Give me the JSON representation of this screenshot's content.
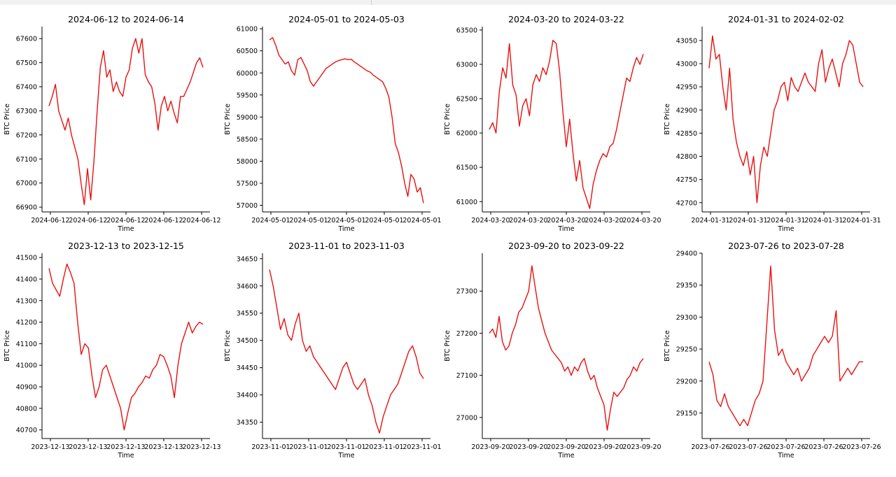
{
  "colors": {
    "line": "#e8110f",
    "axis": "#000000"
  },
  "chart_data": [
    {
      "type": "line",
      "title": "2024-06-12 to 2024-06-14",
      "xlabel": "Time",
      "ylabel": "BTC Price",
      "x_tick_labels": [
        "2024-06-12",
        "2024-06-12",
        "2024-06-12",
        "2024-06-12",
        "2024-06-12"
      ],
      "y_ticks": [
        66900,
        67000,
        67100,
        67200,
        67300,
        67400,
        67500,
        67600
      ],
      "ylim": [
        66880,
        67650
      ],
      "series": [
        {
          "values": [
            67320,
            67360,
            67410,
            67300,
            67260,
            67220,
            67270,
            67200,
            67150,
            67100,
            67000,
            66910,
            67060,
            66930,
            67090,
            67300,
            67480,
            67550,
            67440,
            67470,
            67380,
            67420,
            67380,
            67360,
            67440,
            67470,
            67560,
            67600,
            67540,
            67600,
            67450,
            67420,
            67400,
            67330,
            67220,
            67320,
            67360,
            67300,
            67340,
            67290,
            67250,
            67360,
            67360,
            67390,
            67420,
            67460,
            67500,
            67520,
            67480
          ]
        }
      ],
      "grid": false,
      "legend": "none"
    },
    {
      "type": "line",
      "title": "2024-05-01 to 2024-05-03",
      "xlabel": "Time",
      "ylabel": "BTC Price",
      "x_tick_labels": [
        "2024-05-01",
        "2024-05-01",
        "2024-05-01",
        "2024-05-01",
        "2024-05-01"
      ],
      "y_ticks": [
        57000,
        57500,
        58000,
        58500,
        59000,
        59500,
        60000,
        60500,
        61000
      ],
      "ylim": [
        56850,
        61050
      ],
      "series": [
        {
          "values": [
            60750,
            60800,
            60620,
            60400,
            60300,
            60200,
            60250,
            60050,
            59950,
            60300,
            60350,
            60200,
            60050,
            59800,
            59700,
            59800,
            59900,
            60000,
            60100,
            60150,
            60200,
            60250,
            60280,
            60300,
            60320,
            60300,
            60310,
            60250,
            60200,
            60150,
            60100,
            60050,
            60020,
            59950,
            59900,
            59850,
            59800,
            59650,
            59450,
            59000,
            58400,
            58200,
            57900,
            57500,
            57200,
            57700,
            57600,
            57300,
            57400,
            57050
          ]
        }
      ],
      "grid": false,
      "legend": "none"
    },
    {
      "type": "line",
      "title": "2024-03-20 to 2024-03-22",
      "xlabel": "Time",
      "ylabel": "BTC Price",
      "x_tick_labels": [
        "2024-03-20",
        "2024-03-20",
        "2024-03-20",
        "2024-03-20",
        "2024-03-20"
      ],
      "y_ticks": [
        61000,
        61500,
        62000,
        62500,
        63000,
        63500
      ],
      "ylim": [
        60850,
        63550
      ],
      "series": [
        {
          "values": [
            62050,
            62150,
            62000,
            62600,
            62950,
            62800,
            63300,
            62700,
            62550,
            62100,
            62400,
            62500,
            62250,
            62700,
            62850,
            62750,
            62950,
            62850,
            63050,
            63350,
            63300,
            62900,
            62300,
            61800,
            62200,
            61700,
            61300,
            61600,
            61200,
            61050,
            60900,
            61250,
            61450,
            61600,
            61700,
            61650,
            61800,
            61850,
            62050,
            62300,
            62550,
            62800,
            62750,
            62950,
            63100,
            63000,
            63150
          ]
        }
      ],
      "grid": false,
      "legend": "none"
    },
    {
      "type": "line",
      "title": "2024-01-31 to 2024-02-02",
      "xlabel": "Time",
      "ylabel": "BTC Price",
      "x_tick_labels": [
        "2024-01-31",
        "2024-01-31",
        "2024-01-31",
        "2024-01-31",
        "2024-01-31"
      ],
      "y_ticks": [
        42700,
        42750,
        42800,
        42850,
        42900,
        42950,
        43000,
        43050
      ],
      "ylim": [
        42680,
        43080
      ],
      "series": [
        {
          "values": [
            42990,
            43060,
            43010,
            43020,
            42950,
            42900,
            42990,
            42880,
            42830,
            42800,
            42780,
            42810,
            42760,
            42800,
            42700,
            42780,
            42820,
            42800,
            42850,
            42900,
            42920,
            42950,
            42960,
            42920,
            42970,
            42950,
            42940,
            42960,
            42980,
            42960,
            42950,
            42940,
            43000,
            43030,
            42960,
            42990,
            43010,
            42980,
            42950,
            43000,
            43020,
            43050,
            43040,
            43000,
            42960,
            42950
          ]
        }
      ],
      "grid": false,
      "legend": "none"
    },
    {
      "type": "line",
      "title": "2023-12-13 to 2023-12-15",
      "xlabel": "Time",
      "ylabel": "BTC Price",
      "x_tick_labels": [
        "2023-12-13",
        "2023-12-13",
        "2023-12-13",
        "2023-12-13",
        "2023-12-13"
      ],
      "y_ticks": [
        40700,
        40800,
        40900,
        41000,
        41100,
        41200,
        41300,
        41400,
        41500
      ],
      "ylim": [
        40660,
        41520
      ],
      "series": [
        {
          "values": [
            41450,
            41380,
            41350,
            41320,
            41400,
            41470,
            41430,
            41380,
            41200,
            41050,
            41100,
            41080,
            40950,
            40850,
            40900,
            40980,
            41000,
            40950,
            40900,
            40850,
            40800,
            40700,
            40780,
            40850,
            40870,
            40900,
            40920,
            40950,
            40940,
            40980,
            41000,
            41050,
            41040,
            41000,
            40950,
            40850,
            41000,
            41100,
            41150,
            41200,
            41150,
            41180,
            41200,
            41190
          ]
        }
      ],
      "grid": false,
      "legend": "none"
    },
    {
      "type": "line",
      "title": "2023-11-01 to 2023-11-03",
      "xlabel": "Time",
      "ylabel": "BTC Price",
      "x_tick_labels": [
        "2023-11-01",
        "2023-11-01",
        "2023-11-01",
        "2023-11-01",
        "2023-11-01"
      ],
      "y_ticks": [
        34350,
        34400,
        34450,
        34500,
        34550,
        34600,
        34650
      ],
      "ylim": [
        34320,
        34660
      ],
      "series": [
        {
          "values": [
            34630,
            34600,
            34560,
            34520,
            34540,
            34510,
            34500,
            34530,
            34550,
            34500,
            34480,
            34490,
            34470,
            34460,
            34450,
            34440,
            34430,
            34420,
            34410,
            34430,
            34450,
            34460,
            34440,
            34420,
            34410,
            34420,
            34430,
            34400,
            34380,
            34350,
            34330,
            34360,
            34380,
            34400,
            34410,
            34420,
            34440,
            34460,
            34480,
            34490,
            34470,
            34440,
            34430
          ]
        }
      ],
      "grid": false,
      "legend": "none"
    },
    {
      "type": "line",
      "title": "2023-09-20 to 2023-09-22",
      "xlabel": "Time",
      "ylabel": "BTC Price",
      "x_tick_labels": [
        "2023-09-20",
        "2023-09-20",
        "2023-09-20",
        "2023-09-20",
        "2023-09-20"
      ],
      "y_ticks": [
        27000,
        27100,
        27200,
        27300
      ],
      "ylim": [
        26950,
        27390
      ],
      "series": [
        {
          "values": [
            27200,
            27210,
            27190,
            27240,
            27180,
            27160,
            27170,
            27200,
            27220,
            27250,
            27260,
            27280,
            27300,
            27360,
            27310,
            27260,
            27230,
            27200,
            27180,
            27160,
            27150,
            27140,
            27130,
            27110,
            27120,
            27100,
            27120,
            27110,
            27130,
            27140,
            27110,
            27090,
            27100,
            27070,
            27050,
            27030,
            26970,
            27020,
            27060,
            27050,
            27060,
            27070,
            27090,
            27100,
            27120,
            27110,
            27130,
            27140
          ]
        }
      ],
      "grid": false,
      "legend": "none"
    },
    {
      "type": "line",
      "title": "2023-07-26 to 2023-07-28",
      "xlabel": "Time",
      "ylabel": "BTC Price",
      "x_tick_labels": [
        "2023-07-26",
        "2023-07-26",
        "2023-07-26",
        "2023-07-26",
        "2023-07-26"
      ],
      "y_ticks": [
        29150,
        29200,
        29250,
        29300,
        29350,
        29400
      ],
      "ylim": [
        29110,
        29400
      ],
      "series": [
        {
          "values": [
            29230,
            29210,
            29170,
            29160,
            29180,
            29160,
            29150,
            29140,
            29130,
            29140,
            29130,
            29150,
            29170,
            29180,
            29200,
            29290,
            29380,
            29280,
            29240,
            29250,
            29230,
            29220,
            29210,
            29220,
            29200,
            29210,
            29220,
            29240,
            29250,
            29260,
            29270,
            29260,
            29270,
            29310,
            29200,
            29210,
            29220,
            29210,
            29220,
            29230,
            29230
          ]
        }
      ],
      "grid": false,
      "legend": "none"
    }
  ]
}
